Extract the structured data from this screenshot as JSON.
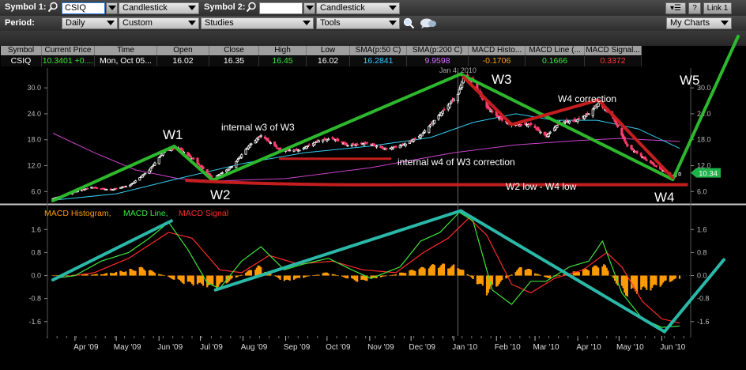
{
  "toolbar": {
    "symbol1_label": "Symbol 1:",
    "symbol1_value": "CSIQ",
    "chart_type1": "Candlestick",
    "symbol2_label": "Symbol 2:",
    "symbol2_value": "",
    "chart_type2": "Candlestick",
    "period_label": "Period:",
    "period_value": "Daily",
    "range_value": "Custom",
    "studies_label": "Studies",
    "tools_label": "Tools",
    "help_label": "?",
    "link_label": "Link 1",
    "mycharts_label": "My Charts"
  },
  "quote": {
    "headers": [
      "Symbol",
      "Current Price",
      "Time",
      "Open",
      "Close",
      "High",
      "Low",
      "SMA(p:50 C)",
      "SMA(p:200 C)",
      "MACD Histo...",
      "MACD Line (...",
      "MACD Signal..."
    ],
    "values": [
      "CSIQ",
      "10.3401 +0....",
      "Mon, Oct 05...",
      "16.02",
      "16.35",
      "16.45",
      "16.02",
      "16.2841",
      "9.9598",
      "-0.1706",
      "0.1666",
      "0.3372"
    ],
    "colors": [
      "#ffffff",
      "#39e639",
      "#ffffff",
      "#ffffff",
      "#ffffff",
      "#39e639",
      "#ffffff",
      "#38c8ff",
      "#d070ff",
      "#ff9a1a",
      "#39e639",
      "#ff3a3a"
    ]
  },
  "colors": {
    "background": "#000000",
    "up_candle": "#ffffff",
    "down_candle": "#ff3c6e",
    "sma50": "#33ccee",
    "sma200": "#cc44cc",
    "wave_line": "#2db82d",
    "support_line": "#c41e1e",
    "macd_line": "#3ee63e",
    "macd_signal": "#ff2a2a",
    "macd_hist": "#ff9a00",
    "macd_trend": "#2ab8a8"
  },
  "chart_data": [
    {
      "type": "candlestick",
      "symbol": "CSIQ",
      "title": "",
      "y_ticks": [
        6.0,
        12.0,
        18.0,
        24.0,
        30.0
      ],
      "ylim": [
        3.5,
        33.5
      ],
      "current_price_label": "10.34",
      "crosshair_label": "Jan 4, 2010",
      "close_path": [
        [
          "2009-03-16",
          4.4
        ],
        [
          "2009-03-30",
          5.8
        ],
        [
          "2009-04-13",
          7.0
        ],
        [
          "2009-04-27",
          6.4
        ],
        [
          "2009-05-11",
          7.5
        ],
        [
          "2009-05-25",
          11.0
        ],
        [
          "2009-06-05",
          15.5
        ],
        [
          "2009-06-15",
          16.1
        ],
        [
          "2009-06-26",
          13.5
        ],
        [
          "2009-07-10",
          9.0
        ],
        [
          "2009-07-24",
          11.8
        ],
        [
          "2009-08-05",
          16.5
        ],
        [
          "2009-08-14",
          19.0
        ],
        [
          "2009-08-28",
          15.6
        ],
        [
          "2009-09-11",
          15.6
        ],
        [
          "2009-09-25",
          17.8
        ],
        [
          "2009-10-05",
          18.3
        ],
        [
          "2009-10-16",
          16.7
        ],
        [
          "2009-10-30",
          17.2
        ],
        [
          "2009-11-13",
          15.8
        ],
        [
          "2009-11-27",
          17.0
        ],
        [
          "2009-12-08",
          19.0
        ],
        [
          "2009-12-18",
          22.5
        ],
        [
          "2010-01-04",
          28.5
        ],
        [
          "2010-01-08",
          32.5
        ],
        [
          "2010-01-15",
          31.5
        ],
        [
          "2010-01-25",
          25.5
        ],
        [
          "2010-02-05",
          22.5
        ],
        [
          "2010-02-12",
          21.5
        ],
        [
          "2010-02-26",
          21.5
        ],
        [
          "2010-03-09",
          18.8
        ],
        [
          "2010-03-19",
          22.0
        ],
        [
          "2010-03-31",
          22.5
        ],
        [
          "2010-04-09",
          24.0
        ],
        [
          "2010-04-16",
          26.5
        ],
        [
          "2010-04-26",
          23.5
        ],
        [
          "2010-05-07",
          16.5
        ],
        [
          "2010-05-20",
          13.5
        ],
        [
          "2010-06-01",
          11.0
        ],
        [
          "2010-06-09",
          9.5
        ],
        [
          "2010-06-14",
          10.34
        ]
      ],
      "sma50_path": [
        [
          "2009-03-16",
          4.0
        ],
        [
          "2009-05-01",
          5.5
        ],
        [
          "2009-06-15",
          9.0
        ],
        [
          "2009-08-01",
          12.5
        ],
        [
          "2009-09-15",
          15.0
        ],
        [
          "2009-11-01",
          16.5
        ],
        [
          "2009-12-15",
          18.5
        ],
        [
          "2010-01-15",
          22.0
        ],
        [
          "2010-02-15",
          24.0
        ],
        [
          "2010-03-15",
          22.5
        ],
        [
          "2010-04-15",
          22.5
        ],
        [
          "2010-05-15",
          20.5
        ],
        [
          "2010-06-14",
          16.0
        ]
      ],
      "sma200_path": [
        [
          "2009-03-16",
          19.5
        ],
        [
          "2009-04-15",
          15.0
        ],
        [
          "2009-05-15",
          11.0
        ],
        [
          "2009-06-15",
          9.0
        ],
        [
          "2009-07-15",
          8.5
        ],
        [
          "2009-09-01",
          9.0
        ],
        [
          "2009-11-01",
          11.5
        ],
        [
          "2010-01-01",
          15.0
        ],
        [
          "2010-02-15",
          16.8
        ],
        [
          "2010-04-01",
          17.8
        ],
        [
          "2010-05-01",
          18.3
        ],
        [
          "2010-06-14",
          17.6
        ]
      ],
      "annotations": [
        "W1",
        "W2",
        "W3",
        "W4",
        "W5",
        "internal w3 of W3",
        "internal w4 of W3 correction",
        "W4 correction",
        "W2 low - W4 low"
      ]
    },
    {
      "type": "line",
      "title": "",
      "legend": [
        "MACD Histogram,",
        "MACD Line,",
        "MACD Signal"
      ],
      "y_ticks": [
        -1.6,
        -0.8,
        0.0,
        0.8,
        1.6
      ],
      "ylim": [
        -2.1,
        2.35
      ],
      "macd_path": [
        [
          "2009-03-16",
          -0.1
        ],
        [
          "2009-04-01",
          0.0
        ],
        [
          "2009-04-20",
          0.5
        ],
        [
          "2009-05-10",
          0.8
        ],
        [
          "2009-05-25",
          1.3
        ],
        [
          "2009-06-08",
          1.85
        ],
        [
          "2009-06-22",
          0.9
        ],
        [
          "2009-07-06",
          -0.25
        ],
        [
          "2009-07-15",
          -0.45
        ],
        [
          "2009-07-31",
          0.5
        ],
        [
          "2009-08-14",
          1.0
        ],
        [
          "2009-08-31",
          0.2
        ],
        [
          "2009-09-14",
          0.4
        ],
        [
          "2009-10-02",
          0.6
        ],
        [
          "2009-10-19",
          0.2
        ],
        [
          "2009-11-02",
          -0.1
        ],
        [
          "2009-11-23",
          0.3
        ],
        [
          "2009-12-08",
          1.2
        ],
        [
          "2009-12-22",
          1.5
        ],
        [
          "2010-01-05",
          2.2
        ],
        [
          "2010-01-15",
          1.9
        ],
        [
          "2010-01-29",
          -0.5
        ],
        [
          "2010-02-12",
          -1.0
        ],
        [
          "2010-02-26",
          -0.2
        ],
        [
          "2010-03-09",
          -0.2
        ],
        [
          "2010-03-26",
          0.3
        ],
        [
          "2010-04-09",
          0.5
        ],
        [
          "2010-04-19",
          1.2
        ],
        [
          "2010-05-03",
          -0.6
        ],
        [
          "2010-05-18",
          -1.5
        ],
        [
          "2010-06-01",
          -1.8
        ],
        [
          "2010-06-14",
          -1.75
        ]
      ],
      "signal_path": [
        [
          "2009-03-16",
          -0.1
        ],
        [
          "2009-04-15",
          0.1
        ],
        [
          "2009-05-10",
          0.6
        ],
        [
          "2009-06-08",
          1.5
        ],
        [
          "2009-06-25",
          1.3
        ],
        [
          "2009-07-15",
          0.2
        ],
        [
          "2009-07-31",
          0.1
        ],
        [
          "2009-08-20",
          0.7
        ],
        [
          "2009-09-10",
          0.4
        ],
        [
          "2009-10-05",
          0.5
        ],
        [
          "2009-10-27",
          0.2
        ],
        [
          "2009-11-20",
          0.1
        ],
        [
          "2009-12-10",
          0.8
        ],
        [
          "2009-12-28",
          1.3
        ],
        [
          "2010-01-12",
          2.0
        ],
        [
          "2010-01-25",
          1.4
        ],
        [
          "2010-02-12",
          -0.3
        ],
        [
          "2010-02-26",
          -0.6
        ],
        [
          "2010-03-15",
          -0.1
        ],
        [
          "2010-04-05",
          0.2
        ],
        [
          "2010-04-22",
          0.8
        ],
        [
          "2010-05-03",
          0.3
        ],
        [
          "2010-05-18",
          -0.9
        ],
        [
          "2010-06-01",
          -1.5
        ],
        [
          "2010-06-14",
          -1.65
        ]
      ],
      "histogram_path": [
        [
          "2009-03-16",
          0.0
        ],
        [
          "2009-04-20",
          0.05
        ],
        [
          "2009-05-20",
          0.25
        ],
        [
          "2009-06-20",
          -0.25
        ],
        [
          "2009-07-12",
          -0.4
        ],
        [
          "2009-08-12",
          0.3
        ],
        [
          "2009-08-31",
          -0.2
        ],
        [
          "2009-10-01",
          0.1
        ],
        [
          "2009-10-25",
          -0.2
        ],
        [
          "2009-11-15",
          0.0
        ],
        [
          "2009-12-20",
          0.35
        ],
        [
          "2010-01-05",
          0.3
        ],
        [
          "2010-01-25",
          -0.55
        ],
        [
          "2010-02-20",
          0.3
        ],
        [
          "2010-03-10",
          -0.1
        ],
        [
          "2010-04-01",
          0.15
        ],
        [
          "2010-04-20",
          0.35
        ],
        [
          "2010-05-05",
          -0.6
        ],
        [
          "2010-05-25",
          -0.45
        ],
        [
          "2010-06-05",
          -0.2
        ],
        [
          "2010-06-14",
          -0.1
        ]
      ]
    }
  ],
  "x_axis_labels": [
    "Apr '09",
    "May '09",
    "Jun '09",
    "Jul '09",
    "Aug '09",
    "Sep '09",
    "Oct '09",
    "Nov '09",
    "Dec '09",
    "Jan '10",
    "Feb '10",
    "Mar '10",
    "Apr '10",
    "May '10",
    "Jun '10"
  ]
}
